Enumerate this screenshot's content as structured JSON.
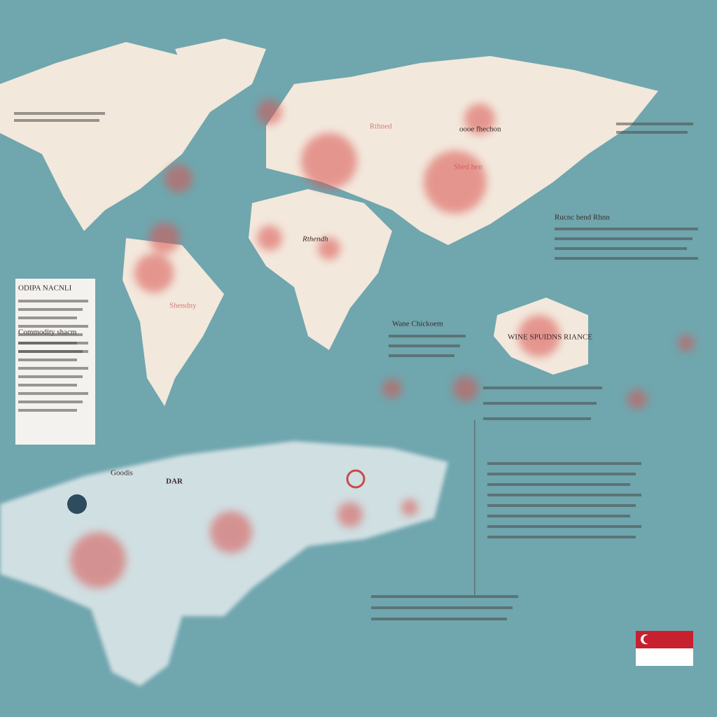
{
  "panel": {
    "title": "ODIPA NACNLI",
    "subtitle": "Commodity shacm"
  },
  "labels": [
    "Shendny",
    "Rthendh",
    "oooe fhechon",
    "Goodis",
    "DAR",
    "Shed hen",
    "Rthned",
    "Wane Chickoem",
    "WINE SPUIDNS RIANCE",
    "Rucnc hend Rhnn"
  ]
}
